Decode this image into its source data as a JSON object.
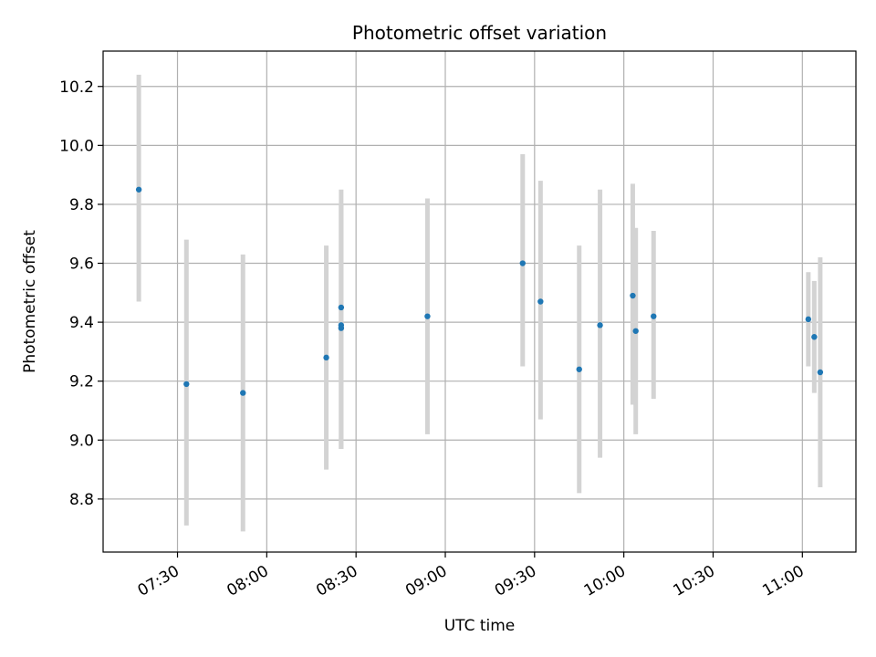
{
  "chart_data": {
    "type": "scatter",
    "title": "Photometric offset variation",
    "xlabel": "UTC time",
    "ylabel": "Photometric offset",
    "x_tick_labels": [
      "07:30",
      "08:00",
      "08:30",
      "09:00",
      "09:30",
      "10:00",
      "10:30",
      "11:00"
    ],
    "y_tick_labels": [
      "8.8",
      "9.0",
      "9.2",
      "9.4",
      "9.6",
      "9.8",
      "10.0",
      "10.2"
    ],
    "y_ticks": [
      8.8,
      9.0,
      9.2,
      9.4,
      9.6,
      9.8,
      10.0,
      10.2
    ],
    "x_ticks": [
      "07:30",
      "08:00",
      "08:30",
      "09:00",
      "09:30",
      "10:00",
      "10:30",
      "11:00"
    ],
    "xlim": [
      "07:05",
      "11:18"
    ],
    "ylim": [
      8.62,
      10.32
    ],
    "grid": true,
    "marker_color": "#1f77b4",
    "errorbar_color": "#d3d3d3",
    "points": [
      {
        "x": "07:17",
        "y": 9.85,
        "lo": 9.47,
        "hi": 10.24
      },
      {
        "x": "07:33",
        "y": 9.19,
        "lo": 8.71,
        "hi": 9.68
      },
      {
        "x": "07:52",
        "y": 9.16,
        "lo": 8.69,
        "hi": 9.63
      },
      {
        "x": "08:20",
        "y": 9.28,
        "lo": 8.9,
        "hi": 9.66
      },
      {
        "x": "08:25",
        "y": 9.45,
        "lo": 8.97,
        "hi": 9.85
      },
      {
        "x": "08:25",
        "y": 9.38,
        "lo": 8.97,
        "hi": 9.8
      },
      {
        "x": "08:25",
        "y": 9.39,
        "lo": 8.97,
        "hi": 9.8
      },
      {
        "x": "08:54",
        "y": 9.42,
        "lo": 9.02,
        "hi": 9.82
      },
      {
        "x": "09:26",
        "y": 9.6,
        "lo": 9.25,
        "hi": 9.97
      },
      {
        "x": "09:32",
        "y": 9.47,
        "lo": 9.07,
        "hi": 9.88
      },
      {
        "x": "09:45",
        "y": 9.24,
        "lo": 8.82,
        "hi": 9.66
      },
      {
        "x": "09:52",
        "y": 9.39,
        "lo": 8.94,
        "hi": 9.85
      },
      {
        "x": "10:03",
        "y": 9.49,
        "lo": 9.12,
        "hi": 9.87
      },
      {
        "x": "10:04",
        "y": 9.37,
        "lo": 9.02,
        "hi": 9.72
      },
      {
        "x": "10:10",
        "y": 9.42,
        "lo": 9.14,
        "hi": 9.71
      },
      {
        "x": "11:02",
        "y": 9.41,
        "lo": 9.25,
        "hi": 9.57
      },
      {
        "x": "11:04",
        "y": 9.35,
        "lo": 9.16,
        "hi": 9.54
      },
      {
        "x": "11:06",
        "y": 9.23,
        "lo": 8.84,
        "hi": 9.62
      }
    ]
  }
}
